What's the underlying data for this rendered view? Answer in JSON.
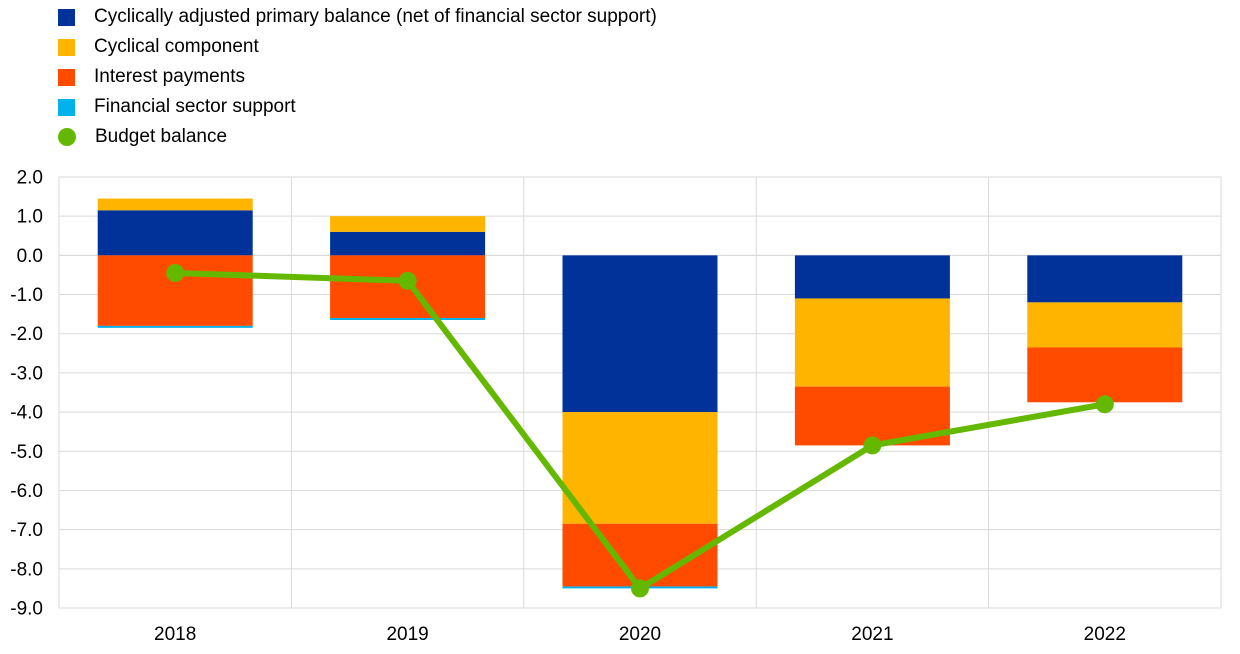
{
  "chart_data": {
    "type": "bar",
    "stacked": true,
    "title": "",
    "xlabel": "",
    "ylabel": "",
    "categories": [
      "2018",
      "2019",
      "2020",
      "2021",
      "2022"
    ],
    "ylim": [
      -9.0,
      2.0
    ],
    "yticks": [
      "2.0",
      "1.0",
      "0.0",
      "-1.0",
      "-2.0",
      "-3.0",
      "-4.0",
      "-5.0",
      "-6.0",
      "-7.0",
      "-8.0",
      "-9.0"
    ],
    "series": [
      {
        "name": "Cyclically adjusted primary balance (net of financial sector support)",
        "color": "#003299",
        "values": [
          1.15,
          0.6,
          -4.0,
          -1.1,
          -1.2
        ]
      },
      {
        "name": "Cyclical component",
        "color": "#FFB400",
        "values": [
          0.3,
          0.4,
          -2.85,
          -2.25,
          -1.15
        ]
      },
      {
        "name": "Interest payments",
        "color": "#FF4B00",
        "values": [
          -1.8,
          -1.6,
          -1.6,
          -1.5,
          -1.4
        ]
      },
      {
        "name": "Financial sector support",
        "color": "#00B1EA",
        "values": [
          -0.05,
          -0.05,
          -0.05,
          0.0,
          0.0
        ]
      }
    ],
    "line": {
      "name": "Budget balance",
      "color": "#65B800",
      "values": [
        -0.45,
        -0.65,
        -8.5,
        -4.85,
        -3.8
      ]
    },
    "legend_position": "top-left",
    "grid": true
  }
}
